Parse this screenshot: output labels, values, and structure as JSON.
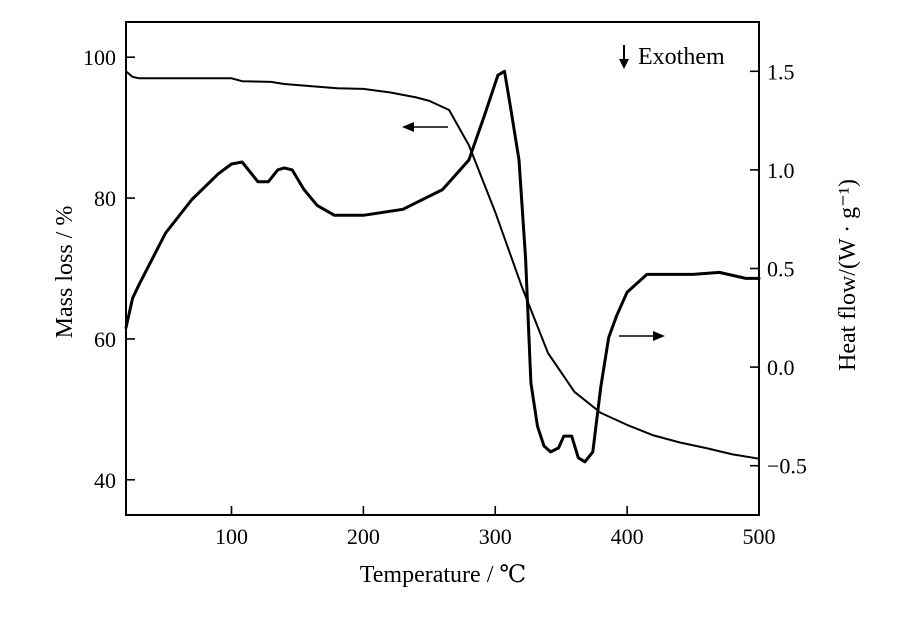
{
  "chart_data": {
    "type": "line",
    "title": "",
    "xlabel": "Temperature / ℃",
    "ylabel_left": "Mass loss / %",
    "ylabel_right": "Heat flow/(W · g⁻¹)",
    "annotation": "Exothem",
    "xlim": [
      20,
      500
    ],
    "ylim_left": [
      35,
      105
    ],
    "ylim_right": [
      -0.75,
      1.75
    ],
    "x_ticks": [
      100,
      200,
      300,
      400,
      500
    ],
    "y_left_ticks": [
      40,
      60,
      80,
      100
    ],
    "y_right_ticks": [
      -0.5,
      0.0,
      0.5,
      1.0,
      1.5
    ],
    "y_right_tick_labels": [
      "−0.5",
      "0.0",
      "0.5",
      "1.0",
      "1.5"
    ],
    "grid": false,
    "legend": "none",
    "series": [
      {
        "axis": "left",
        "x": [
          20,
          25,
          30,
          50,
          100,
          108,
          130,
          140,
          160,
          180,
          200,
          220,
          240,
          250,
          265,
          280,
          300,
          320,
          340,
          360,
          380,
          400,
          420,
          440,
          460,
          480,
          500
        ],
        "y": [
          98.0,
          97.2,
          97.0,
          97.0,
          97.0,
          96.6,
          96.5,
          96.2,
          95.9,
          95.6,
          95.5,
          95.0,
          94.3,
          93.8,
          92.5,
          87.5,
          78.0,
          67.5,
          58.0,
          52.5,
          49.5,
          47.8,
          46.3,
          45.3,
          44.5,
          43.6,
          43.0
        ]
      },
      {
        "axis": "right",
        "x": [
          20,
          25,
          30,
          50,
          70,
          90,
          100,
          108,
          120,
          128,
          135,
          140,
          146,
          155,
          165,
          178,
          200,
          230,
          260,
          280,
          292,
          302,
          307,
          312,
          318,
          323,
          327,
          332,
          337,
          342,
          348,
          352,
          358,
          363,
          368,
          374,
          380,
          386,
          392,
          400,
          415,
          430,
          450,
          470,
          490,
          500
        ],
        "y": [
          0.2,
          0.35,
          0.42,
          0.68,
          0.85,
          0.98,
          1.03,
          1.04,
          0.94,
          0.94,
          1.0,
          1.01,
          1.0,
          0.9,
          0.82,
          0.77,
          0.77,
          0.8,
          0.9,
          1.05,
          1.28,
          1.48,
          1.5,
          1.3,
          1.05,
          0.55,
          -0.08,
          -0.3,
          -0.4,
          -0.43,
          -0.41,
          -0.35,
          -0.35,
          -0.46,
          -0.48,
          -0.43,
          -0.1,
          0.15,
          0.26,
          0.38,
          0.47,
          0.47,
          0.47,
          0.48,
          0.45,
          0.45
        ]
      }
    ]
  }
}
